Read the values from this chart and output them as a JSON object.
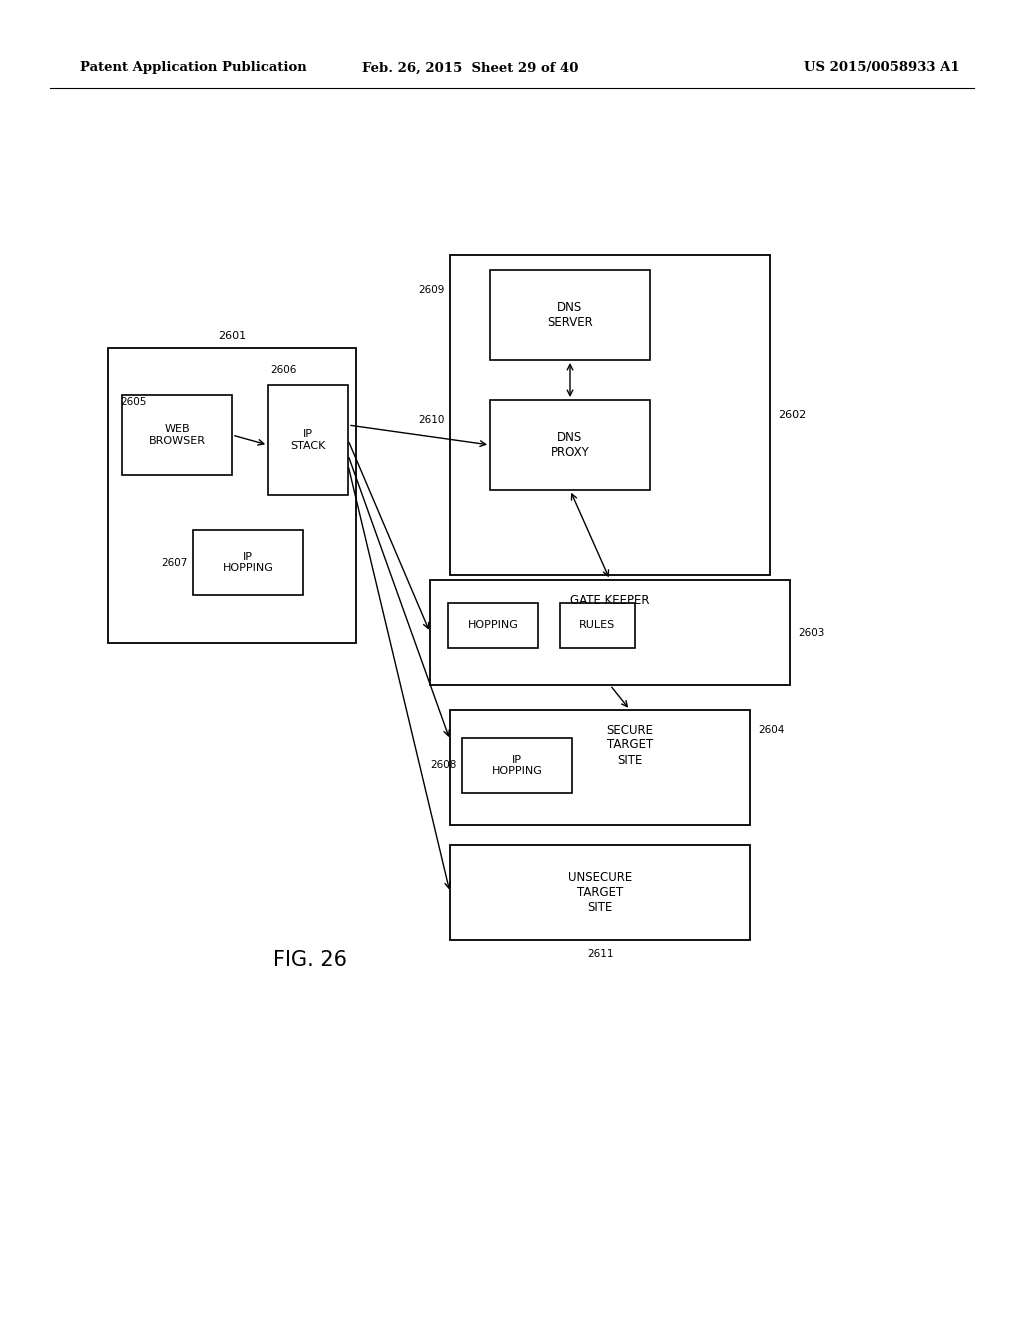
{
  "bg_color": "#ffffff",
  "header_left": "Patent Application Publication",
  "header_mid": "Feb. 26, 2015  Sheet 29 of 40",
  "header_right": "US 2015/0058933 A1",
  "fig_label": "FIG. 26"
}
